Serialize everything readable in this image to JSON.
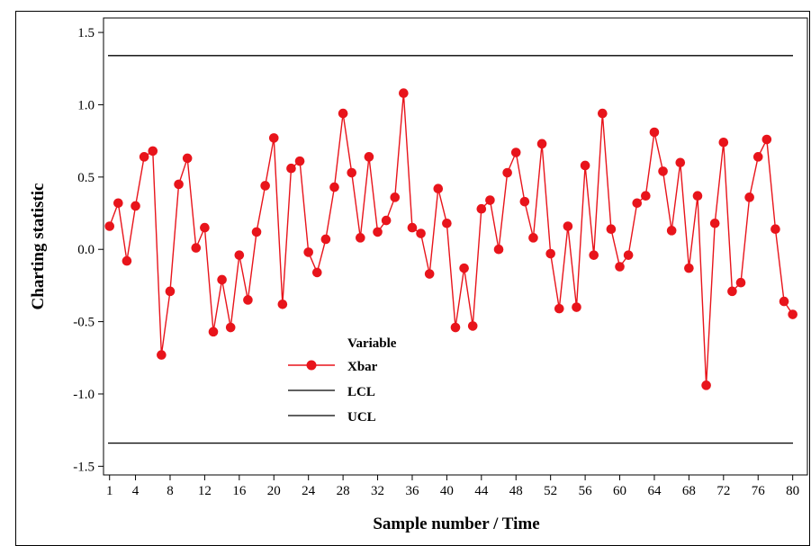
{
  "chart_data": {
    "type": "line",
    "title": "",
    "xlabel": "Sample number / Time",
    "ylabel": "Charting statistic",
    "xlim": [
      0.3,
      81.7
    ],
    "ylim": [
      -1.56,
      1.6
    ],
    "x_ticks": [
      1,
      4,
      8,
      12,
      16,
      20,
      24,
      28,
      32,
      36,
      40,
      44,
      48,
      52,
      56,
      60,
      64,
      68,
      72,
      76,
      80
    ],
    "y_ticks": [
      -1.5,
      -1.0,
      -0.5,
      0.0,
      0.5,
      1.0,
      1.5
    ],
    "y_tick_labels": [
      "-1.5",
      "-1.0",
      "-0.5",
      "0.0",
      "0.5",
      "1.0",
      "1.5"
    ],
    "grid": false,
    "legend": {
      "title": "Variable",
      "placement": "lower-left",
      "entries": [
        "Xbar",
        "LCL",
        "UCL"
      ]
    },
    "colors": {
      "xbar": "#e8141b",
      "limits": "#000000"
    },
    "series": [
      {
        "name": "Xbar",
        "marker": "circle",
        "x": [
          1,
          2,
          3,
          4,
          5,
          6,
          7,
          8,
          9,
          10,
          11,
          12,
          13,
          14,
          15,
          16,
          17,
          18,
          19,
          20,
          21,
          22,
          23,
          24,
          25,
          26,
          27,
          28,
          29,
          30,
          31,
          32,
          33,
          34,
          35,
          36,
          37,
          38,
          39,
          40,
          41,
          42,
          43,
          44,
          45,
          46,
          47,
          48,
          49,
          50,
          51,
          52,
          53,
          54,
          55,
          56,
          57,
          58,
          59,
          60,
          61,
          62,
          63,
          64,
          65,
          66,
          67,
          68,
          69,
          70,
          71,
          72,
          73,
          74,
          75,
          76,
          77,
          78,
          79,
          80
        ],
        "values": [
          0.16,
          0.32,
          -0.08,
          0.3,
          0.64,
          0.68,
          -0.73,
          -0.29,
          0.45,
          0.63,
          0.01,
          0.15,
          -0.57,
          -0.21,
          -0.54,
          -0.04,
          -0.35,
          0.12,
          0.44,
          0.77,
          -0.38,
          0.56,
          0.61,
          -0.02,
          -0.16,
          0.07,
          0.43,
          0.94,
          0.53,
          0.08,
          0.64,
          0.12,
          0.2,
          0.36,
          1.08,
          0.15,
          0.11,
          -0.17,
          0.42,
          0.18,
          -0.54,
          -0.13,
          -0.53,
          0.28,
          0.34,
          0.0,
          0.53,
          0.67,
          0.33,
          0.08,
          0.73,
          -0.03,
          -0.41,
          0.16,
          -0.4,
          0.58,
          -0.04,
          0.94,
          0.14,
          -0.12,
          -0.04,
          0.32,
          0.37,
          0.81,
          0.54,
          0.13,
          0.6,
          -0.13,
          0.37,
          -0.94,
          0.18,
          0.74,
          -0.29,
          -0.23,
          0.36,
          0.64,
          0.76,
          0.14,
          -0.36,
          -0.45
        ]
      },
      {
        "name": "LCL",
        "constant": -1.34
      },
      {
        "name": "UCL",
        "constant": 1.34
      }
    ]
  }
}
